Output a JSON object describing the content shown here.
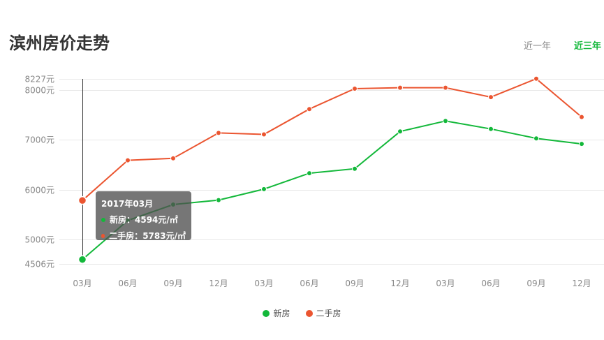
{
  "header": {
    "title": "滨州房价走势"
  },
  "range_tabs": [
    {
      "label": "近一年"
    },
    {
      "label": "近三年"
    }
  ],
  "colors": {
    "new": "#13b83a",
    "second": "#eb5530",
    "accent": "#13b83a"
  },
  "chart_data": {
    "type": "line",
    "categories": [
      "03月",
      "06月",
      "09月",
      "12月",
      "03月",
      "06月",
      "09月",
      "12月",
      "03月",
      "06月",
      "09月",
      "12月"
    ],
    "series": [
      {
        "name": "新房",
        "values": [
          4594,
          5380,
          5700,
          5790,
          6010,
          6330,
          6420,
          7170,
          7380,
          7220,
          7030,
          6920
        ]
      },
      {
        "name": "二手房",
        "values": [
          5783,
          6590,
          6630,
          7140,
          7110,
          7620,
          8030,
          8050,
          8050,
          7860,
          8230,
          7460
        ]
      }
    ],
    "yticks": [
      "8227元",
      "8000元",
      "7000元",
      "6000元",
      "5000元",
      "4506元"
    ],
    "ytick_values": [
      8227,
      8000,
      7000,
      6000,
      5000,
      4506
    ],
    "ylim": [
      4506,
      8227
    ],
    "grid": true,
    "legend_position": "bottom-center",
    "tooltip": {
      "title": "2017年03月",
      "rows": [
        "新房：4594元/㎡",
        "二手房：5783元/㎡"
      ],
      "index": 0
    }
  }
}
